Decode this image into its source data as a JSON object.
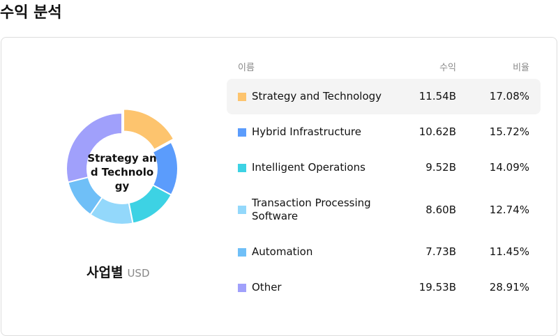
{
  "title": "수익 분석",
  "chart_data": {
    "type": "pie",
    "donut": true,
    "categories": [
      "Strategy and Technology",
      "Hybrid Infrastructure",
      "Intelligent Operations",
      "Transaction Processing Software",
      "Automation",
      "Other"
    ],
    "values": [
      17.08,
      15.72,
      14.09,
      12.74,
      11.45,
      28.91
    ],
    "value_labels": [
      "17.08%",
      "15.72%",
      "14.09%",
      "12.74%",
      "11.45%",
      "28.91%"
    ],
    "colors": [
      "#fdc46e",
      "#5b9cfc",
      "#3dd2e4",
      "#93d8fb",
      "#6fbff7",
      "#a0a0fb"
    ]
  },
  "caption": {
    "label": "사업별",
    "currency": "USD"
  },
  "table": {
    "columns": [
      "이름",
      "수익",
      "비율"
    ],
    "revenue": [
      "11.54B",
      "10.62B",
      "9.52B",
      "8.60B",
      "7.73B",
      "19.53B"
    ]
  }
}
